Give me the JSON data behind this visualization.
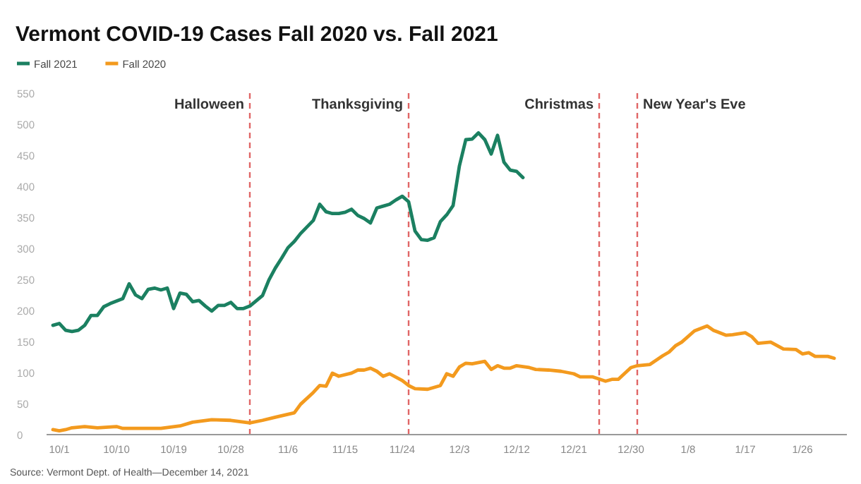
{
  "chart_data": {
    "type": "line",
    "title": "Vermont COVID-19 Cases Fall 2020 vs. Fall 2021",
    "annotations": [
      "Source: Vermont Dept. of Health—December 14, 2021"
    ],
    "xlim": [
      "2020-09-29",
      "2021-02-02"
    ],
    "xticks": [
      {
        "value": "2020-10-01",
        "label": "10/1"
      },
      {
        "value": "2020-10-10",
        "label": "10/10"
      },
      {
        "value": "2020-10-19",
        "label": "10/19"
      },
      {
        "value": "2020-10-28",
        "label": "10/28"
      },
      {
        "value": "2020-11-06",
        "label": "11/6"
      },
      {
        "value": "2020-11-15",
        "label": "11/15"
      },
      {
        "value": "2020-11-24",
        "label": "11/24"
      },
      {
        "value": "2020-12-03",
        "label": "12/3"
      },
      {
        "value": "2020-12-12",
        "label": "12/12"
      },
      {
        "value": "2020-12-21",
        "label": "12/21"
      },
      {
        "value": "2020-12-30",
        "label": "12/30"
      },
      {
        "value": "2021-01-08",
        "label": "1/8"
      },
      {
        "value": "2021-01-17",
        "label": "1/17"
      },
      {
        "value": "2021-01-26",
        "label": "1/26"
      }
    ],
    "ylim": [
      0,
      550
    ],
    "yticks": [
      0,
      50,
      100,
      150,
      200,
      250,
      300,
      350,
      400,
      450,
      500,
      550
    ],
    "grid": false,
    "legend": "top left",
    "line_style": "solid",
    "marker": "none",
    "ref_lines": [
      {
        "axis": "x",
        "value": "2020-10-31",
        "label": "Halloween",
        "color": "#e06666",
        "line_style": "dashed"
      },
      {
        "axis": "x",
        "value": "2020-11-25",
        "label": "Thanksgiving",
        "color": "#e06666",
        "line_style": "dashed"
      },
      {
        "axis": "x",
        "value": "2020-12-25",
        "label": "Christmas",
        "color": "#e06666",
        "line_style": "dashed"
      },
      {
        "axis": "x",
        "value": "2020-12-31",
        "label": "New Year's Eve",
        "color": "#e06666",
        "line_style": "dashed"
      }
    ],
    "series": [
      {
        "name": "Fall 2021",
        "color": "#1b8061",
        "x": [
          "2020-09-30",
          "2020-10-01",
          "2020-10-02",
          "2020-10-03",
          "2020-10-04",
          "2020-10-05",
          "2020-10-06",
          "2020-10-07",
          "2020-10-08",
          "2020-10-09",
          "2020-10-11",
          "2020-10-12",
          "2020-10-13",
          "2020-10-14",
          "2020-10-15",
          "2020-10-16",
          "2020-10-17",
          "2020-10-18",
          "2020-10-19",
          "2020-10-20",
          "2020-10-21",
          "2020-10-22",
          "2020-10-23",
          "2020-10-24",
          "2020-10-25",
          "2020-10-26",
          "2020-10-27",
          "2020-10-28",
          "2020-10-29",
          "2020-10-30",
          "2020-10-31",
          "2020-11-02",
          "2020-11-03",
          "2020-11-04",
          "2020-11-05",
          "2020-11-06",
          "2020-11-07",
          "2020-11-08",
          "2020-11-10",
          "2020-11-11",
          "2020-11-12",
          "2020-11-13",
          "2020-11-14",
          "2020-11-15",
          "2020-11-16",
          "2020-11-17",
          "2020-11-18",
          "2020-11-19",
          "2020-11-20",
          "2020-11-21",
          "2020-11-22",
          "2020-11-23",
          "2020-11-24",
          "2020-11-25",
          "2020-11-26",
          "2020-11-27",
          "2020-11-28",
          "2020-11-29",
          "2020-11-30",
          "2020-12-01",
          "2020-12-02",
          "2020-12-03",
          "2020-12-04",
          "2020-12-05",
          "2020-12-06",
          "2020-12-07",
          "2020-12-08",
          "2020-12-09",
          "2020-12-10",
          "2020-12-11",
          "2020-12-12",
          "2020-12-13"
        ],
        "values": [
          176,
          179,
          168,
          166,
          168,
          176,
          192,
          192,
          206,
          211,
          219,
          243,
          225,
          219,
          234,
          236,
          233,
          236,
          203,
          228,
          226,
          214,
          216,
          207,
          199,
          208,
          208,
          213,
          203,
          203,
          207,
          224,
          249,
          268,
          284,
          301,
          311,
          324,
          345,
          371,
          359,
          356,
          356,
          358,
          363,
          353,
          348,
          341,
          365,
          368,
          371,
          378,
          384,
          375,
          328,
          314,
          313,
          317,
          343,
          354,
          369,
          433,
          475,
          476,
          486,
          475,
          452,
          482,
          439,
          426,
          424,
          414
        ]
      },
      {
        "name": "Fall 2020",
        "color": "#f39a1e",
        "x": [
          "2020-09-30",
          "2020-10-01",
          "2020-10-02",
          "2020-10-03",
          "2020-10-05",
          "2020-10-07",
          "2020-10-10",
          "2020-10-11",
          "2020-10-14",
          "2020-10-17",
          "2020-10-20",
          "2020-10-22",
          "2020-10-25",
          "2020-10-28",
          "2020-10-31",
          "2020-11-02",
          "2020-11-04",
          "2020-11-07",
          "2020-11-08",
          "2020-11-10",
          "2020-11-11",
          "2020-11-12",
          "2020-11-13",
          "2020-11-14",
          "2020-11-16",
          "2020-11-17",
          "2020-11-18",
          "2020-11-19",
          "2020-11-20",
          "2020-11-21",
          "2020-11-22",
          "2020-11-24",
          "2020-11-25",
          "2020-11-26",
          "2020-11-28",
          "2020-11-30",
          "2020-12-01",
          "2020-12-02",
          "2020-12-03",
          "2020-12-04",
          "2020-12-05",
          "2020-12-07",
          "2020-12-08",
          "2020-12-09",
          "2020-12-10",
          "2020-12-11",
          "2020-12-12",
          "2020-12-14",
          "2020-12-15",
          "2020-12-17",
          "2020-12-19",
          "2020-12-21",
          "2020-12-22",
          "2020-12-24",
          "2020-12-26",
          "2020-12-27",
          "2020-12-28",
          "2020-12-30",
          "2020-12-31",
          "2021-01-02",
          "2021-01-04",
          "2021-01-05",
          "2021-01-06",
          "2021-01-07",
          "2021-01-09",
          "2021-01-10",
          "2021-01-11",
          "2021-01-12",
          "2021-01-14",
          "2021-01-15",
          "2021-01-17",
          "2021-01-18",
          "2021-01-19",
          "2021-01-21",
          "2021-01-23",
          "2021-01-25",
          "2021-01-26",
          "2021-01-27",
          "2021-01-28",
          "2021-01-30",
          "2021-01-31"
        ],
        "values": [
          8,
          6,
          8,
          11,
          13,
          11,
          13,
          10,
          10,
          10,
          14,
          20,
          24,
          23,
          19,
          23,
          28,
          35,
          49,
          68,
          79,
          78,
          99,
          94,
          99,
          104,
          104,
          107,
          102,
          94,
          98,
          87,
          79,
          74,
          73,
          79,
          98,
          94,
          109,
          115,
          114,
          118,
          105,
          111,
          107,
          107,
          111,
          108,
          105,
          104,
          102,
          98,
          93,
          93,
          86,
          89,
          89,
          108,
          111,
          113,
          127,
          133,
          143,
          149,
          167,
          171,
          175,
          168,
          160,
          161,
          164,
          158,
          147,
          149,
          138,
          137,
          130,
          132,
          126,
          126,
          123
        ]
      }
    ]
  }
}
